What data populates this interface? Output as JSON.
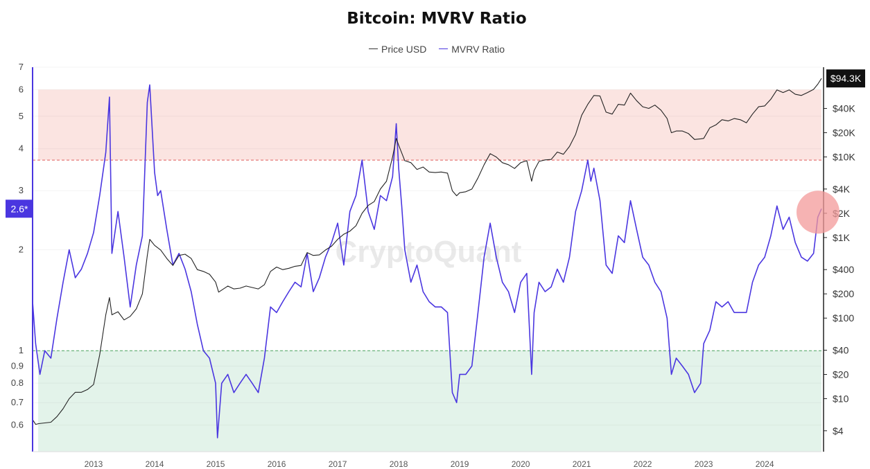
{
  "title": "Bitcoin: MVRV Ratio",
  "watermark": "CryptoQuant",
  "colors": {
    "price": "#222222",
    "mvrv": "#4a36e0",
    "overvalued_zone": "#fbe4e1",
    "undervalued_zone": "#e3f3ea",
    "upper_threshold_line": "#e05a5a",
    "lower_threshold_line": "#4aa35f",
    "highlight_circle": "#f39a9a",
    "current_price_label_bg": "#111111",
    "current_mvrv_label_bg": "#4a36e0"
  },
  "current_labels": {
    "mvrv": "2.6*",
    "price": "$94.3K"
  },
  "chart_data": {
    "type": "line",
    "title": "Bitcoin: MVRV Ratio",
    "legend": {
      "placement": "top-center",
      "entries": [
        "Price USD",
        "MVRV Ratio"
      ]
    },
    "grid": true,
    "x_axis": {
      "ticks": [
        "2013",
        "2014",
        "2015",
        "2016",
        "2017",
        "2018",
        "2019",
        "2020",
        "2021",
        "2022",
        "2023",
        "2024"
      ],
      "range": [
        2012.0,
        2024.93
      ]
    },
    "y_left": {
      "scale": "log",
      "range": [
        0.5,
        7
      ],
      "ticks": [
        "0.6",
        "0.7",
        "0.8",
        "0.9",
        "1",
        "2",
        "3",
        "4",
        "5",
        "6",
        "7"
      ]
    },
    "y_right": {
      "scale": "log",
      "range": [
        2.2,
        130000
      ],
      "ticks": [
        "$4",
        "$10",
        "$20",
        "$40",
        "$100",
        "$200",
        "$400",
        "$1K",
        "$2K",
        "$4K",
        "$10K",
        "$20K",
        "$40K"
      ]
    },
    "zones": [
      {
        "name": "overvalued",
        "axis": "left",
        "from": 3.7,
        "to": 6.0
      },
      {
        "name": "undervalued",
        "axis": "left",
        "from": 0.5,
        "to": 1.0
      }
    ],
    "threshold_lines": [
      {
        "axis": "left",
        "value": 3.7
      },
      {
        "axis": "left",
        "value": 1.0
      }
    ],
    "series": [
      {
        "name": "MVRV Ratio",
        "axis": "left",
        "points": [
          [
            2012.0,
            1.4
          ],
          [
            2012.05,
            1.05
          ],
          [
            2012.12,
            0.85
          ],
          [
            2012.2,
            1.0
          ],
          [
            2012.3,
            0.95
          ],
          [
            2012.4,
            1.25
          ],
          [
            2012.5,
            1.6
          ],
          [
            2012.6,
            2.0
          ],
          [
            2012.7,
            1.65
          ],
          [
            2012.8,
            1.75
          ],
          [
            2012.9,
            1.95
          ],
          [
            2013.0,
            2.25
          ],
          [
            2013.1,
            2.9
          ],
          [
            2013.2,
            3.9
          ],
          [
            2013.26,
            5.7
          ],
          [
            2013.3,
            1.95
          ],
          [
            2013.4,
            2.6
          ],
          [
            2013.5,
            1.9
          ],
          [
            2013.6,
            1.35
          ],
          [
            2013.7,
            1.8
          ],
          [
            2013.8,
            2.2
          ],
          [
            2013.88,
            5.5
          ],
          [
            2013.92,
            6.2
          ],
          [
            2014.0,
            3.4
          ],
          [
            2014.05,
            2.9
          ],
          [
            2014.1,
            3.0
          ],
          [
            2014.2,
            2.3
          ],
          [
            2014.3,
            1.8
          ],
          [
            2014.4,
            1.95
          ],
          [
            2014.5,
            1.75
          ],
          [
            2014.6,
            1.5
          ],
          [
            2014.7,
            1.2
          ],
          [
            2014.8,
            1.0
          ],
          [
            2014.9,
            0.95
          ],
          [
            2015.0,
            0.8
          ],
          [
            2015.03,
            0.55
          ],
          [
            2015.1,
            0.8
          ],
          [
            2015.2,
            0.85
          ],
          [
            2015.3,
            0.75
          ],
          [
            2015.4,
            0.8
          ],
          [
            2015.5,
            0.85
          ],
          [
            2015.6,
            0.8
          ],
          [
            2015.7,
            0.75
          ],
          [
            2015.8,
            0.95
          ],
          [
            2015.9,
            1.35
          ],
          [
            2016.0,
            1.3
          ],
          [
            2016.1,
            1.4
          ],
          [
            2016.2,
            1.5
          ],
          [
            2016.3,
            1.6
          ],
          [
            2016.4,
            1.55
          ],
          [
            2016.5,
            1.95
          ],
          [
            2016.6,
            1.5
          ],
          [
            2016.7,
            1.65
          ],
          [
            2016.8,
            1.9
          ],
          [
            2016.9,
            2.1
          ],
          [
            2017.0,
            2.4
          ],
          [
            2017.1,
            1.8
          ],
          [
            2017.2,
            2.6
          ],
          [
            2017.3,
            2.9
          ],
          [
            2017.4,
            3.7
          ],
          [
            2017.5,
            2.6
          ],
          [
            2017.6,
            2.3
          ],
          [
            2017.7,
            2.9
          ],
          [
            2017.8,
            2.8
          ],
          [
            2017.9,
            3.3
          ],
          [
            2017.96,
            4.75
          ],
          [
            2018.0,
            3.5
          ],
          [
            2018.05,
            2.7
          ],
          [
            2018.1,
            2.0
          ],
          [
            2018.2,
            1.6
          ],
          [
            2018.3,
            1.8
          ],
          [
            2018.4,
            1.5
          ],
          [
            2018.5,
            1.4
          ],
          [
            2018.6,
            1.35
          ],
          [
            2018.7,
            1.35
          ],
          [
            2018.8,
            1.3
          ],
          [
            2018.88,
            0.75
          ],
          [
            2018.95,
            0.7
          ],
          [
            2019.0,
            0.85
          ],
          [
            2019.1,
            0.85
          ],
          [
            2019.2,
            0.9
          ],
          [
            2019.3,
            1.3
          ],
          [
            2019.4,
            1.9
          ],
          [
            2019.5,
            2.4
          ],
          [
            2019.6,
            1.9
          ],
          [
            2019.7,
            1.6
          ],
          [
            2019.8,
            1.5
          ],
          [
            2019.9,
            1.3
          ],
          [
            2020.0,
            1.6
          ],
          [
            2020.1,
            1.7
          ],
          [
            2020.18,
            0.85
          ],
          [
            2020.22,
            1.3
          ],
          [
            2020.3,
            1.6
          ],
          [
            2020.4,
            1.5
          ],
          [
            2020.5,
            1.55
          ],
          [
            2020.6,
            1.75
          ],
          [
            2020.7,
            1.6
          ],
          [
            2020.8,
            1.9
          ],
          [
            2020.9,
            2.6
          ],
          [
            2021.0,
            3.0
          ],
          [
            2021.1,
            3.7
          ],
          [
            2021.15,
            3.2
          ],
          [
            2021.2,
            3.5
          ],
          [
            2021.3,
            2.8
          ],
          [
            2021.4,
            1.8
          ],
          [
            2021.5,
            1.7
          ],
          [
            2021.6,
            2.2
          ],
          [
            2021.7,
            2.1
          ],
          [
            2021.8,
            2.8
          ],
          [
            2021.9,
            2.3
          ],
          [
            2022.0,
            1.9
          ],
          [
            2022.1,
            1.8
          ],
          [
            2022.2,
            1.6
          ],
          [
            2022.3,
            1.5
          ],
          [
            2022.4,
            1.25
          ],
          [
            2022.47,
            0.85
          ],
          [
            2022.55,
            0.95
          ],
          [
            2022.65,
            0.9
          ],
          [
            2022.75,
            0.85
          ],
          [
            2022.85,
            0.75
          ],
          [
            2022.95,
            0.8
          ],
          [
            2023.0,
            1.05
          ],
          [
            2023.1,
            1.15
          ],
          [
            2023.2,
            1.4
          ],
          [
            2023.3,
            1.35
          ],
          [
            2023.4,
            1.4
          ],
          [
            2023.5,
            1.3
          ],
          [
            2023.6,
            1.3
          ],
          [
            2023.7,
            1.3
          ],
          [
            2023.8,
            1.6
          ],
          [
            2023.9,
            1.8
          ],
          [
            2024.0,
            1.9
          ],
          [
            2024.1,
            2.2
          ],
          [
            2024.2,
            2.7
          ],
          [
            2024.3,
            2.3
          ],
          [
            2024.4,
            2.5
          ],
          [
            2024.5,
            2.1
          ],
          [
            2024.6,
            1.9
          ],
          [
            2024.7,
            1.85
          ],
          [
            2024.8,
            1.95
          ],
          [
            2024.87,
            2.5
          ],
          [
            2024.93,
            2.65
          ]
        ]
      },
      {
        "name": "Price USD",
        "axis": "right",
        "points": [
          [
            2012.0,
            5.5
          ],
          [
            2012.05,
            4.8
          ],
          [
            2012.1,
            4.9
          ],
          [
            2012.2,
            5.0
          ],
          [
            2012.3,
            5.1
          ],
          [
            2012.4,
            6.0
          ],
          [
            2012.5,
            7.5
          ],
          [
            2012.6,
            10.0
          ],
          [
            2012.7,
            12.0
          ],
          [
            2012.8,
            12.0
          ],
          [
            2012.9,
            13.0
          ],
          [
            2013.0,
            15.0
          ],
          [
            2013.1,
            35.0
          ],
          [
            2013.2,
            110.0
          ],
          [
            2013.26,
            180.0
          ],
          [
            2013.3,
            110.0
          ],
          [
            2013.4,
            120.0
          ],
          [
            2013.5,
            95.0
          ],
          [
            2013.6,
            105.0
          ],
          [
            2013.7,
            130.0
          ],
          [
            2013.8,
            200.0
          ],
          [
            2013.88,
            600.0
          ],
          [
            2013.92,
            950.0
          ],
          [
            2014.0,
            800.0
          ],
          [
            2014.1,
            700.0
          ],
          [
            2014.2,
            550.0
          ],
          [
            2014.3,
            450.0
          ],
          [
            2014.4,
            600.0
          ],
          [
            2014.5,
            620.0
          ],
          [
            2014.6,
            550.0
          ],
          [
            2014.7,
            400.0
          ],
          [
            2014.8,
            380.0
          ],
          [
            2014.9,
            350.0
          ],
          [
            2015.0,
            280.0
          ],
          [
            2015.05,
            210.0
          ],
          [
            2015.2,
            250.0
          ],
          [
            2015.3,
            230.0
          ],
          [
            2015.4,
            235.0
          ],
          [
            2015.5,
            250.0
          ],
          [
            2015.6,
            240.0
          ],
          [
            2015.7,
            230.0
          ],
          [
            2015.8,
            260.0
          ],
          [
            2015.9,
            380.0
          ],
          [
            2016.0,
            430.0
          ],
          [
            2016.1,
            400.0
          ],
          [
            2016.2,
            415.0
          ],
          [
            2016.3,
            440.0
          ],
          [
            2016.4,
            450.0
          ],
          [
            2016.5,
            650.0
          ],
          [
            2016.6,
            600.0
          ],
          [
            2016.7,
            610.0
          ],
          [
            2016.8,
            700.0
          ],
          [
            2016.9,
            780.0
          ],
          [
            2017.0,
            950.0
          ],
          [
            2017.1,
            1100.0
          ],
          [
            2017.2,
            1200.0
          ],
          [
            2017.3,
            1400.0
          ],
          [
            2017.4,
            2000.0
          ],
          [
            2017.5,
            2500.0
          ],
          [
            2017.6,
            2800.0
          ],
          [
            2017.7,
            4000.0
          ],
          [
            2017.8,
            5000.0
          ],
          [
            2017.9,
            10000.0
          ],
          [
            2017.96,
            17000.0
          ],
          [
            2018.0,
            14000.0
          ],
          [
            2018.1,
            9000.0
          ],
          [
            2018.2,
            8500.0
          ],
          [
            2018.3,
            7000.0
          ],
          [
            2018.4,
            7500.0
          ],
          [
            2018.5,
            6500.0
          ],
          [
            2018.6,
            6400.0
          ],
          [
            2018.7,
            6500.0
          ],
          [
            2018.8,
            6300.0
          ],
          [
            2018.88,
            3800.0
          ],
          [
            2018.95,
            3300.0
          ],
          [
            2019.0,
            3600.0
          ],
          [
            2019.1,
            3700.0
          ],
          [
            2019.2,
            4000.0
          ],
          [
            2019.3,
            5500.0
          ],
          [
            2019.4,
            8000.0
          ],
          [
            2019.5,
            11000.0
          ],
          [
            2019.6,
            10000.0
          ],
          [
            2019.7,
            8500.0
          ],
          [
            2019.8,
            8000.0
          ],
          [
            2019.9,
            7200.0
          ],
          [
            2020.0,
            8500.0
          ],
          [
            2020.1,
            9000.0
          ],
          [
            2020.18,
            5000.0
          ],
          [
            2020.22,
            6800.0
          ],
          [
            2020.3,
            8800.0
          ],
          [
            2020.4,
            9200.0
          ],
          [
            2020.5,
            9300.0
          ],
          [
            2020.6,
            11500.0
          ],
          [
            2020.7,
            10800.0
          ],
          [
            2020.8,
            13500.0
          ],
          [
            2020.9,
            19000.0
          ],
          [
            2021.0,
            33000.0
          ],
          [
            2021.1,
            45000.0
          ],
          [
            2021.2,
            58000.0
          ],
          [
            2021.3,
            57000.0
          ],
          [
            2021.4,
            36000.0
          ],
          [
            2021.5,
            34000.0
          ],
          [
            2021.6,
            45000.0
          ],
          [
            2021.7,
            44000.0
          ],
          [
            2021.8,
            62000.0
          ],
          [
            2021.9,
            50000.0
          ],
          [
            2022.0,
            42000.0
          ],
          [
            2022.1,
            40000.0
          ],
          [
            2022.2,
            44000.0
          ],
          [
            2022.3,
            38000.0
          ],
          [
            2022.4,
            30000.0
          ],
          [
            2022.47,
            20000.0
          ],
          [
            2022.55,
            21000.0
          ],
          [
            2022.65,
            21000.0
          ],
          [
            2022.75,
            19500.0
          ],
          [
            2022.85,
            16500.0
          ],
          [
            2022.95,
            16800.0
          ],
          [
            2023.0,
            17000.0
          ],
          [
            2023.1,
            23000.0
          ],
          [
            2023.2,
            25000.0
          ],
          [
            2023.3,
            29000.0
          ],
          [
            2023.4,
            28000.0
          ],
          [
            2023.5,
            30000.0
          ],
          [
            2023.6,
            29000.0
          ],
          [
            2023.7,
            26500.0
          ],
          [
            2023.8,
            34000.0
          ],
          [
            2023.9,
            42000.0
          ],
          [
            2024.0,
            43000.0
          ],
          [
            2024.1,
            52000.0
          ],
          [
            2024.2,
            68000.0
          ],
          [
            2024.3,
            63000.0
          ],
          [
            2024.4,
            68000.0
          ],
          [
            2024.5,
            60000.0
          ],
          [
            2024.6,
            58000.0
          ],
          [
            2024.7,
            63000.0
          ],
          [
            2024.8,
            69000.0
          ],
          [
            2024.87,
            80000.0
          ],
          [
            2024.93,
            94300.0
          ]
        ]
      }
    ]
  }
}
